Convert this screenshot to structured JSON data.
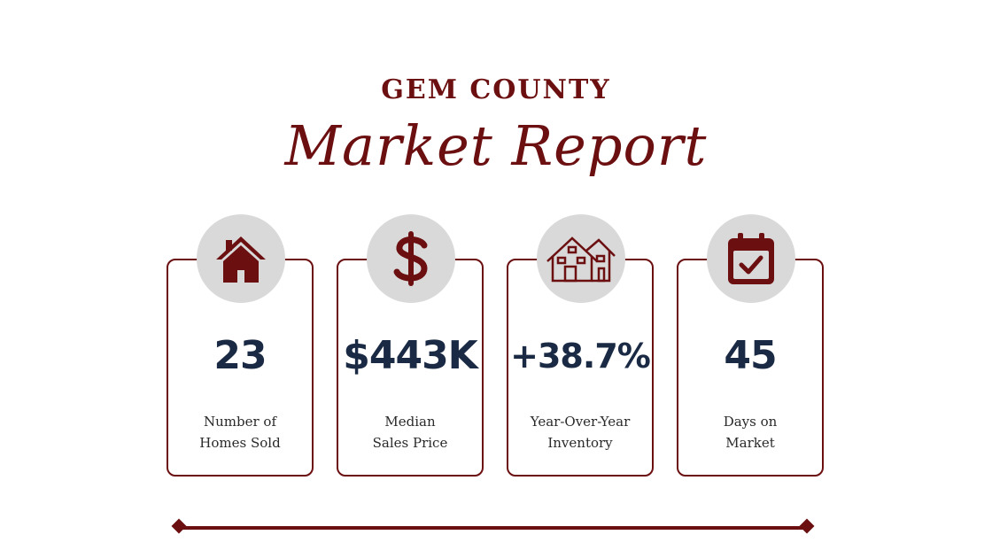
{
  "header": {
    "title": "GEM COUNTY",
    "subtitle": "Market Report"
  },
  "stats": [
    {
      "icon": "house-icon",
      "value": "23",
      "label_line1": "Number of",
      "label_line2": "Homes Sold"
    },
    {
      "icon": "dollar-icon",
      "value": "$443K",
      "label_line1": "Median",
      "label_line2": "Sales Price"
    },
    {
      "icon": "houses-icon",
      "value": "+38.7%",
      "label_line1": "Year-Over-Year",
      "label_line2": "Inventory"
    },
    {
      "icon": "calendar-check-icon",
      "value": "45",
      "label_line1": "Days on",
      "label_line2": "Market"
    }
  ],
  "colors": {
    "accent": "#6b0f10",
    "value_text": "#1a2a44",
    "icon_circle": "#d9d9d9"
  }
}
